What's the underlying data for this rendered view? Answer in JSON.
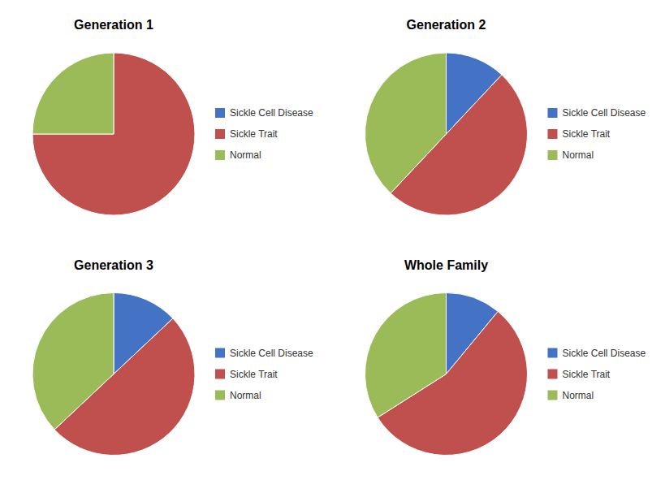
{
  "chart_data": [
    {
      "type": "pie",
      "title": "Generation 1",
      "categories": [
        "Sickle Cell Disease",
        "Sickle Trait",
        "Normal"
      ],
      "values": [
        0,
        75,
        25
      ],
      "colors": [
        "#4472C4",
        "#C0504D",
        "#9BBB59"
      ],
      "legend": "right"
    },
    {
      "type": "pie",
      "title": "Generation 2",
      "categories": [
        "Sickle Cell Disease",
        "Sickle Trait",
        "Normal"
      ],
      "values": [
        12,
        50,
        38
      ],
      "colors": [
        "#4472C4",
        "#C0504D",
        "#9BBB59"
      ],
      "legend": "right"
    },
    {
      "type": "pie",
      "title": "Generation 3",
      "categories": [
        "Sickle Cell Disease",
        "Sickle Trait",
        "Normal"
      ],
      "values": [
        13,
        50,
        37
      ],
      "colors": [
        "#4472C4",
        "#C0504D",
        "#9BBB59"
      ],
      "legend": "right"
    },
    {
      "type": "pie",
      "title": "Whole Family",
      "categories": [
        "Sickle Cell Disease",
        "Sickle Trait",
        "Normal"
      ],
      "values": [
        11,
        55,
        34
      ],
      "colors": [
        "#4472C4",
        "#C0504D",
        "#9BBB59"
      ],
      "legend": "right"
    }
  ]
}
